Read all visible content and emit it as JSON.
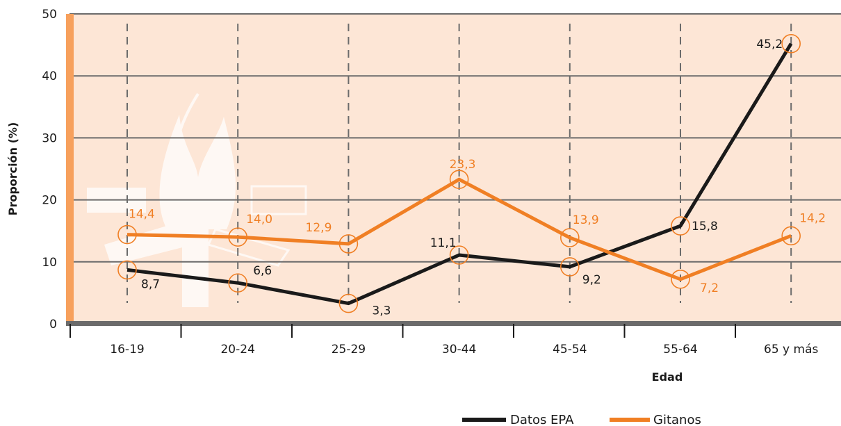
{
  "chart_data": {
    "type": "line",
    "xlabel": "Edad",
    "ylabel": "Proporción (%)",
    "ylim": [
      0,
      50
    ],
    "yticks": [
      "0",
      "10",
      "20",
      "30",
      "40",
      "50"
    ],
    "grid": "horizontal solid lines; vertical dashed lines at each category",
    "categories": [
      "16-19",
      "20-24",
      "25-29",
      "30-44",
      "45-54",
      "55-64",
      "65 y más"
    ],
    "series": [
      {
        "name": "Datos EPA",
        "color": "#1a1a1a",
        "values": [
          8.7,
          6.6,
          3.3,
          11.1,
          9.2,
          15.8,
          45.2
        ],
        "labels": [
          "8,7",
          "6,6",
          "3,3",
          "11,1",
          "9,2",
          "15,8",
          "45,2"
        ]
      },
      {
        "name": "Gitanos",
        "color": "#f07f24",
        "values": [
          14.4,
          14.0,
          12.9,
          23.3,
          13.9,
          7.2,
          14.2
        ],
        "labels": [
          "14,4",
          "14,0",
          "12,9",
          "23,3",
          "13,9",
          "7,2",
          "14,2"
        ]
      }
    ],
    "legend_position": "bottom-right",
    "colors": {
      "plot_background": "#fde6d6",
      "left_axis_bar": "#f7a05c",
      "x_axis_bar": "#6b6b6b",
      "grid": "#6b6b6b"
    }
  }
}
